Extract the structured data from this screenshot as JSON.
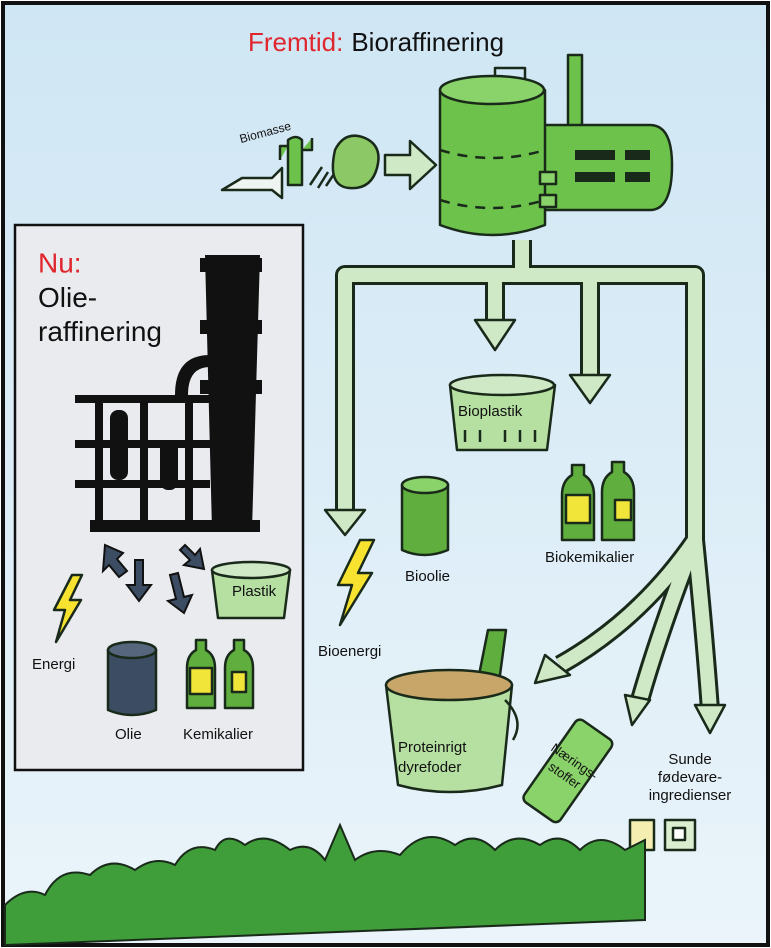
{
  "future": {
    "label": "Fremtid:",
    "title": "Bioraffinering",
    "input": "Biomasse",
    "products": {
      "plastic": "Bioplastik",
      "chemicals": "Biokemikalier",
      "oil": "Bioolie",
      "energy": "Bioenergi",
      "feed": [
        "Proteinrigt",
        "dyrefoder"
      ],
      "nutrients": [
        "Nærings-",
        "stoffer"
      ],
      "food": [
        "Sunde",
        "fødevare-",
        "ingredienser"
      ]
    }
  },
  "now": {
    "label": "Nu:",
    "title": [
      "Olie-",
      "raffinering"
    ],
    "products": {
      "energy": "Energi",
      "oil": "Olie",
      "chemicals": "Kemikalier",
      "plastic": "Plastik"
    }
  }
}
